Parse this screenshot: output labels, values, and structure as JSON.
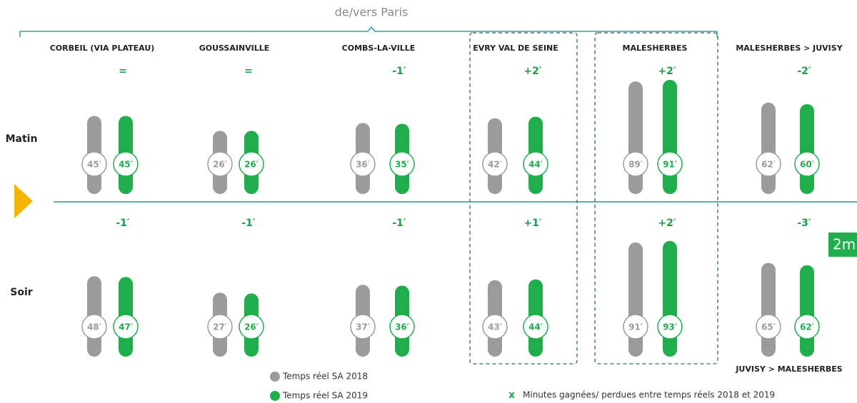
{
  "header": "de/vers Paris",
  "routes": [
    "CORBEIL (VIA PLATEAU)",
    "GOUSSAINVILLE",
    "COMBS-LA-VILLE",
    "EVRY VAL DE SEINE",
    "MALESHERBES",
    "MALESHERBES > JUVISY"
  ],
  "evening_route_note": "JUVISY > MALESHERBES",
  "periods": [
    {
      "name": "Matin",
      "deltas": [
        "=",
        "=",
        "-1′",
        "+2′",
        "+2′",
        "-2′"
      ],
      "series": [
        {
          "name": "Temps réel SA 2018",
          "color": "#9b9b9b",
          "values": [
            45,
            26,
            36,
            42,
            89,
            62
          ],
          "value_labels": [
            "45′",
            "26′",
            "36′",
            "42′",
            "89′",
            "62′"
          ]
        },
        {
          "name": "Temps réel SA 2019",
          "color": "#1fae4b",
          "values": [
            45,
            26,
            35,
            44,
            91,
            60
          ],
          "value_labels": [
            "45′",
            "26′",
            "35′",
            "44′",
            "91′",
            "60′"
          ]
        }
      ]
    },
    {
      "name": "Soir",
      "deltas": [
        "-1′",
        "-1′",
        "-1′",
        "+1′",
        "+2′",
        "-3′"
      ],
      "series": [
        {
          "name": "Temps réel SA 2018",
          "color": "#9b9b9b",
          "values": [
            48,
            27,
            37,
            43,
            91,
            65
          ],
          "value_labels": [
            "48′",
            "27′",
            "37′",
            "43′",
            "91′",
            "65′"
          ]
        },
        {
          "name": "Temps réel SA 2019",
          "color": "#1fae4b",
          "values": [
            47,
            26,
            36,
            44,
            93,
            62
          ],
          "value_labels": [
            "47′",
            "26′",
            "36′",
            "44′",
            "93′",
            "62′"
          ]
        }
      ]
    }
  ],
  "legend": [
    {
      "name": "Temps réel SA 2018",
      "color": "#9b9b9b"
    },
    {
      "name": "Temps réel SA 2019",
      "color": "#1fae4b"
    }
  ],
  "legend_note": {
    "marker": "x",
    "text": "Minutes gagnées/ perdues entre temps réels 2018 et 2019"
  },
  "side_badge": "2m"
}
